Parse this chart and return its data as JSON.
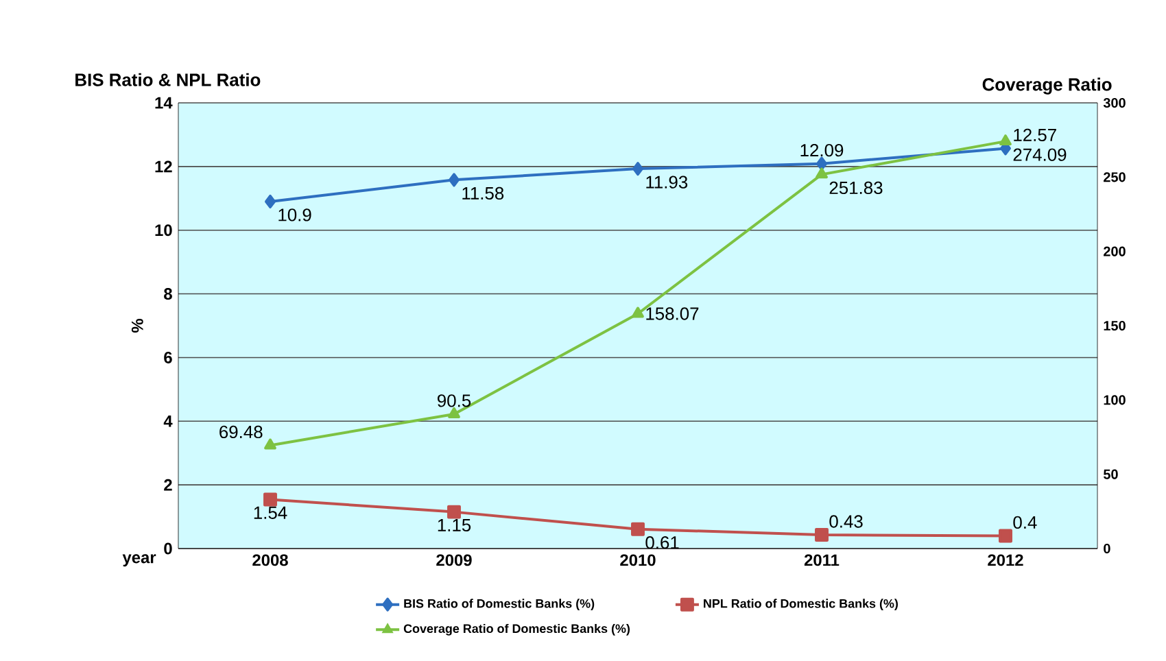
{
  "chart_data": {
    "type": "line",
    "title": "BIS Ratio & NPL Ratio",
    "xlabel": "year",
    "ylabel": "%",
    "y2label": "Coverage Ratio",
    "categories": [
      "2008",
      "2009",
      "2010",
      "2011",
      "2012"
    ],
    "series": [
      {
        "name": "BIS Ratio of Domestic Banks (%)",
        "color": "#2e6fc0",
        "marker": "diamond",
        "values": [
          10.9,
          11.58,
          11.93,
          12.09,
          12.57
        ]
      },
      {
        "name": "NPL Ratio of Domestic Banks (%)",
        "color": "#c0504d",
        "marker": "square",
        "values": [
          1.54,
          1.15,
          0.61,
          0.43,
          0.4
        ]
      },
      {
        "name": "Coverage Ratio of Domestic Banks (%)",
        "color": "#7dc242",
        "marker": "triangle",
        "axis": "y2",
        "values": [
          69.48,
          90.5,
          158.07,
          251.83,
          274.09
        ]
      }
    ],
    "ylim": [
      0,
      14
    ],
    "yticks": [
      0,
      2,
      4,
      6,
      8,
      10,
      12,
      14
    ],
    "y2lim": [
      0,
      300
    ],
    "y2ticks": [
      0,
      50,
      100,
      150,
      200,
      250,
      300
    ],
    "grid": "y",
    "legend": "bottom",
    "data_labels": true,
    "line_style": "solid"
  }
}
